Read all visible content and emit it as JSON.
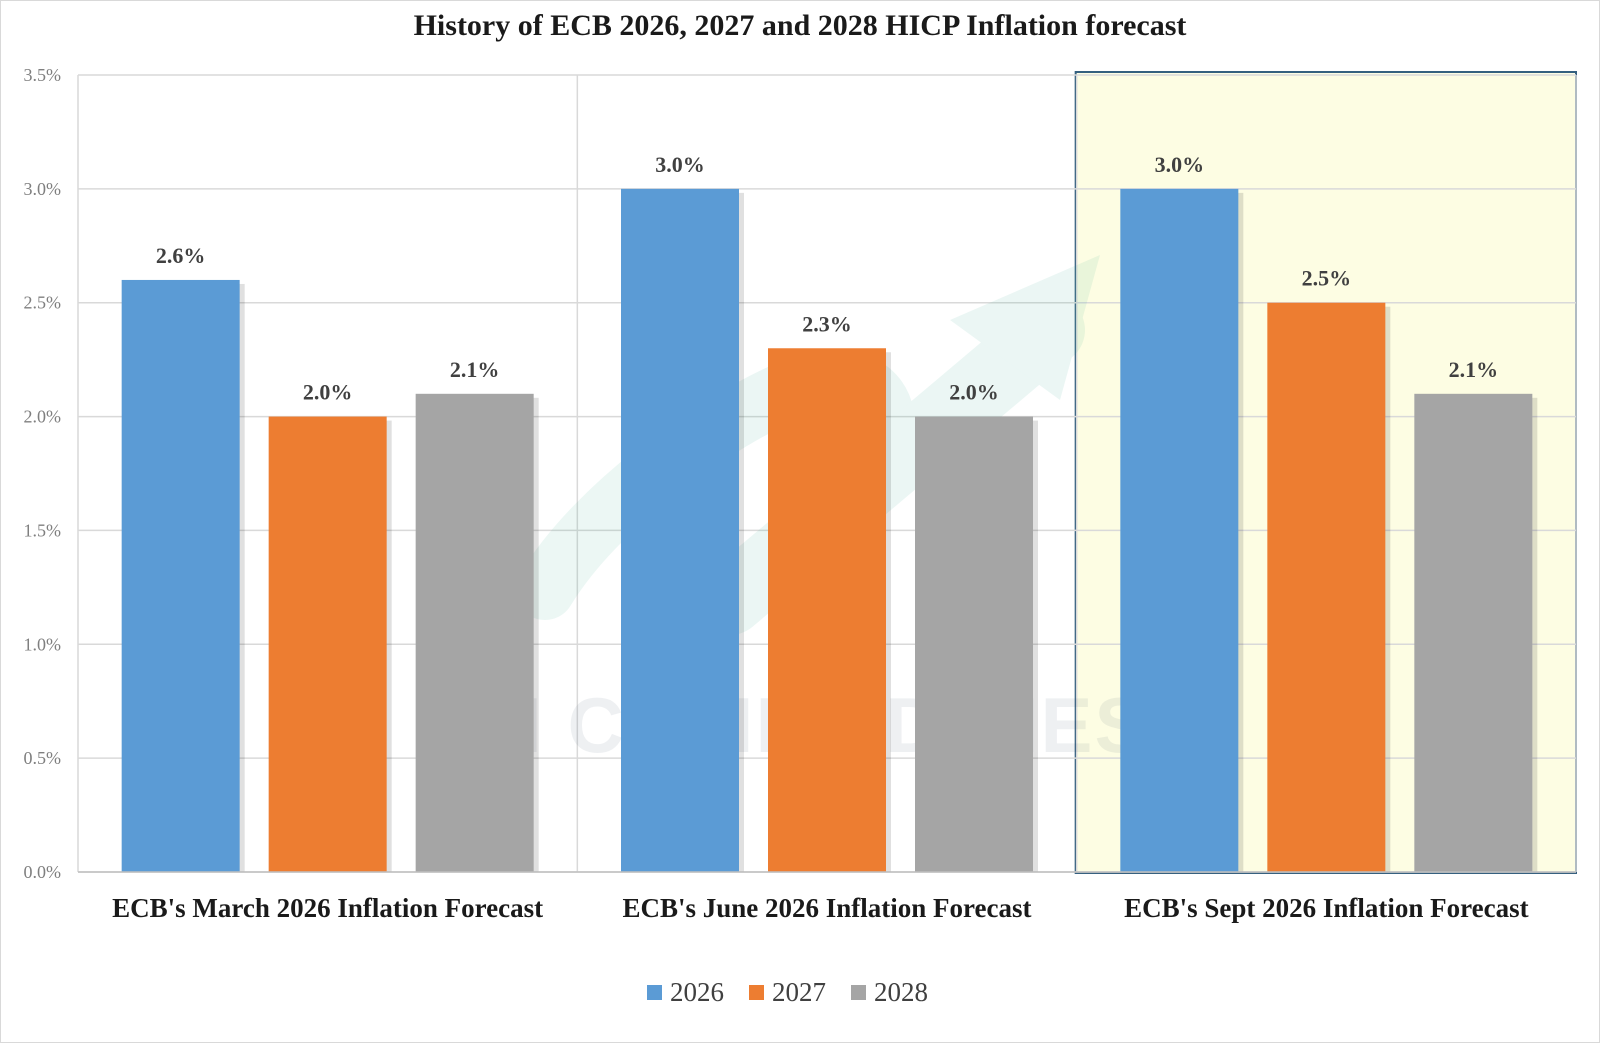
{
  "chart_data": {
    "type": "bar",
    "title": "History of ECB 2026, 2027 and 2028 HICP Inflation forecast",
    "categories": [
      "ECB's March 2026 Inflation Forecast",
      "ECB's June 2026 Inflation Forecast",
      "ECB's Sept 2026 Inflation Forecast"
    ],
    "series": [
      {
        "name": "2026",
        "values": [
          2.6,
          3.0,
          3.0
        ],
        "color": "#5b9bd5",
        "labels": [
          "2.6%",
          "3.0%",
          "3.0%"
        ]
      },
      {
        "name": "2027",
        "values": [
          2.0,
          2.3,
          2.5
        ],
        "color": "#ed7d31",
        "labels": [
          "2.0%",
          "2.3%",
          "2.5%"
        ]
      },
      {
        "name": "2028",
        "values": [
          2.1,
          2.0,
          2.1
        ],
        "color": "#a5a5a5",
        "labels": [
          "2.1%",
          "2.0%",
          "2.1%"
        ]
      }
    ],
    "ylim": [
      0,
      3.5
    ],
    "y_ticks": [
      "0.0%",
      "0.5%",
      "1.0%",
      "1.5%",
      "2.0%",
      "2.5%",
      "3.0%",
      "3.5%"
    ],
    "grid": true,
    "legend_position": "bottom",
    "highlighted_category": "ECB's Sept 2026 Inflation Forecast",
    "highlight_fill": "#fdfde3",
    "highlight_border": "#35607f"
  },
  "watermark": {
    "text": "VN COMMODITIES"
  }
}
